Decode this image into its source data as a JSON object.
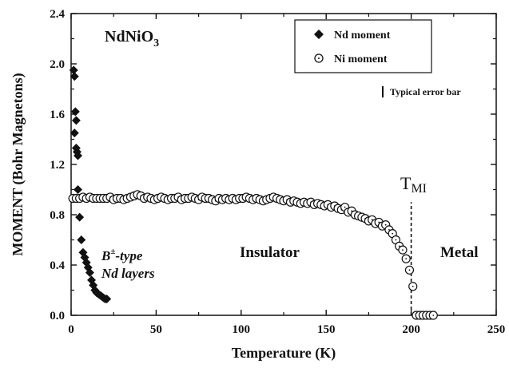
{
  "chart_data": {
    "type": "scatter",
    "title": "",
    "xlabel": "Temperature  (K)",
    "ylabel": "MOMENT  (Bohr Magnetons)",
    "xlim": [
      0,
      250
    ],
    "ylim": [
      0,
      2.4
    ],
    "xticks": [
      "0",
      "50",
      "100",
      "150",
      "200",
      "250"
    ],
    "yticks": [
      "0.0",
      "0.4",
      "0.8",
      "1.2",
      "1.6",
      "2.0",
      "2.4"
    ],
    "legend_position": "top-right",
    "compound": {
      "base": "NdNiO",
      "sub": "3"
    },
    "series": [
      {
        "name": "Nd moment",
        "marker": "filled-diamond",
        "x": [
          1.5,
          2,
          2.5,
          3,
          2,
          3,
          3.5,
          4,
          4,
          5,
          6,
          7,
          8,
          9,
          10,
          11,
          12,
          13,
          14,
          15,
          16,
          17,
          18,
          19,
          20,
          21
        ],
        "y": [
          1.95,
          1.9,
          1.62,
          1.55,
          1.45,
          1.33,
          1.3,
          1.27,
          1.0,
          0.78,
          0.6,
          0.5,
          0.46,
          0.42,
          0.38,
          0.34,
          0.28,
          0.24,
          0.2,
          0.18,
          0.17,
          0.16,
          0.15,
          0.14,
          0.13,
          0.13
        ]
      },
      {
        "name": "Ni moment",
        "marker": "open-circle-dot",
        "x": [
          1,
          3,
          5,
          7,
          9,
          11,
          13,
          15,
          17,
          19,
          21,
          23,
          25,
          27,
          29,
          31,
          33,
          35,
          37,
          39,
          41,
          43,
          45,
          47,
          49,
          51,
          53,
          55,
          57,
          59,
          61,
          63,
          65,
          67,
          69,
          71,
          73,
          75,
          77,
          79,
          81,
          83,
          85,
          87,
          89,
          91,
          93,
          95,
          97,
          99,
          101,
          103,
          105,
          107,
          109,
          111,
          113,
          115,
          117,
          119,
          121,
          123,
          125,
          127,
          129,
          131,
          133,
          135,
          137,
          139,
          141,
          143,
          145,
          147,
          149,
          151,
          153,
          155,
          157,
          159,
          161,
          163,
          165,
          167,
          169,
          171,
          173,
          175,
          177,
          179,
          181,
          183,
          185,
          187,
          189,
          191,
          193,
          195,
          197,
          199,
          201,
          203,
          205,
          207,
          209,
          211,
          213
        ],
        "y": [
          0.93,
          0.93,
          0.93,
          0.94,
          0.93,
          0.94,
          0.93,
          0.93,
          0.93,
          0.93,
          0.93,
          0.94,
          0.92,
          0.93,
          0.93,
          0.92,
          0.93,
          0.94,
          0.95,
          0.96,
          0.95,
          0.93,
          0.94,
          0.93,
          0.92,
          0.93,
          0.94,
          0.93,
          0.92,
          0.93,
          0.93,
          0.94,
          0.92,
          0.93,
          0.93,
          0.94,
          0.93,
          0.92,
          0.94,
          0.93,
          0.93,
          0.92,
          0.91,
          0.93,
          0.92,
          0.93,
          0.92,
          0.93,
          0.92,
          0.93,
          0.93,
          0.94,
          0.93,
          0.92,
          0.93,
          0.92,
          0.91,
          0.92,
          0.93,
          0.94,
          0.93,
          0.92,
          0.91,
          0.92,
          0.9,
          0.91,
          0.9,
          0.89,
          0.9,
          0.89,
          0.9,
          0.88,
          0.89,
          0.88,
          0.87,
          0.88,
          0.86,
          0.87,
          0.85,
          0.84,
          0.86,
          0.82,
          0.83,
          0.8,
          0.79,
          0.78,
          0.77,
          0.75,
          0.76,
          0.73,
          0.74,
          0.71,
          0.72,
          0.68,
          0.65,
          0.6,
          0.55,
          0.52,
          0.45,
          0.36,
          0.23,
          0.0,
          0.0,
          0.0,
          0.0,
          0.0,
          0.0
        ]
      }
    ],
    "annotations": {
      "transition_label": {
        "base": "T",
        "sub": "MI"
      },
      "transition_x": 200,
      "typical_error_bar": "Typical error bar",
      "typical_error_bar_height": 0.09,
      "region_layers_line1": "B",
      "region_layers_sup": "±",
      "region_layers_type": "-type",
      "region_layers_line2": "Nd layers",
      "insulator": "Insulator",
      "metal": "Metal"
    }
  }
}
